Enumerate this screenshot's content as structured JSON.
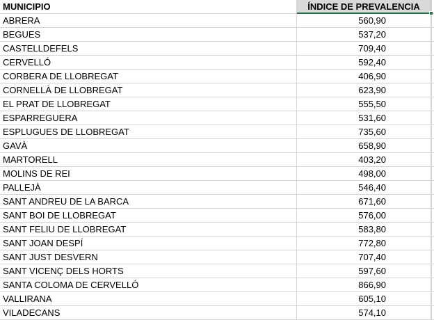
{
  "table": {
    "headers": {
      "municipio": "MUNICIPIO",
      "indice": "ÍNDICE DE PREVALENCIA"
    },
    "rows": [
      {
        "municipio": "ABRERA",
        "indice": "560,90"
      },
      {
        "municipio": "BEGUES",
        "indice": "537,20"
      },
      {
        "municipio": "CASTELLDEFELS",
        "indice": "709,40"
      },
      {
        "municipio": "CERVELLÓ",
        "indice": "592,40"
      },
      {
        "municipio": "CORBERA DE LLOBREGAT",
        "indice": "406,90"
      },
      {
        "municipio": "CORNELLÀ DE LLOBREGAT",
        "indice": "623,90"
      },
      {
        "municipio": "EL PRAT DE LLOBREGAT",
        "indice": "555,50"
      },
      {
        "municipio": "ESPARREGUERA",
        "indice": "531,60"
      },
      {
        "municipio": "ESPLUGUES DE LLOBREGAT",
        "indice": "735,60"
      },
      {
        "municipio": "GAVÀ",
        "indice": "658,90"
      },
      {
        "municipio": "MARTORELL",
        "indice": "403,20"
      },
      {
        "municipio": "MOLINS DE REI",
        "indice": "498,00"
      },
      {
        "municipio": "PALLEJÀ",
        "indice": "546,40"
      },
      {
        "municipio": "SANT ANDREU DE LA BARCA",
        "indice": "671,60"
      },
      {
        "municipio": "SANT BOI DE LLOBREGAT",
        "indice": "576,00"
      },
      {
        "municipio": "SANT FELIU DE LLOBREGAT",
        "indice": "583,80"
      },
      {
        "municipio": "SANT JOAN DESPÍ",
        "indice": "772,80"
      },
      {
        "municipio": "SANT JUST DESVERN",
        "indice": "707,40"
      },
      {
        "municipio": "SANT VICENÇ DELS HORTS",
        "indice": "597,60"
      },
      {
        "municipio": "SANTA COLOMA DE CERVELLÓ",
        "indice": "866,90"
      },
      {
        "municipio": "VALLIRANA",
        "indice": "605,10"
      },
      {
        "municipio": "VILADECANS",
        "indice": "574,10"
      }
    ]
  },
  "colors": {
    "header_fill": "#d9d9d9",
    "gridline": "#d4d4d4",
    "selection": "#217346"
  }
}
